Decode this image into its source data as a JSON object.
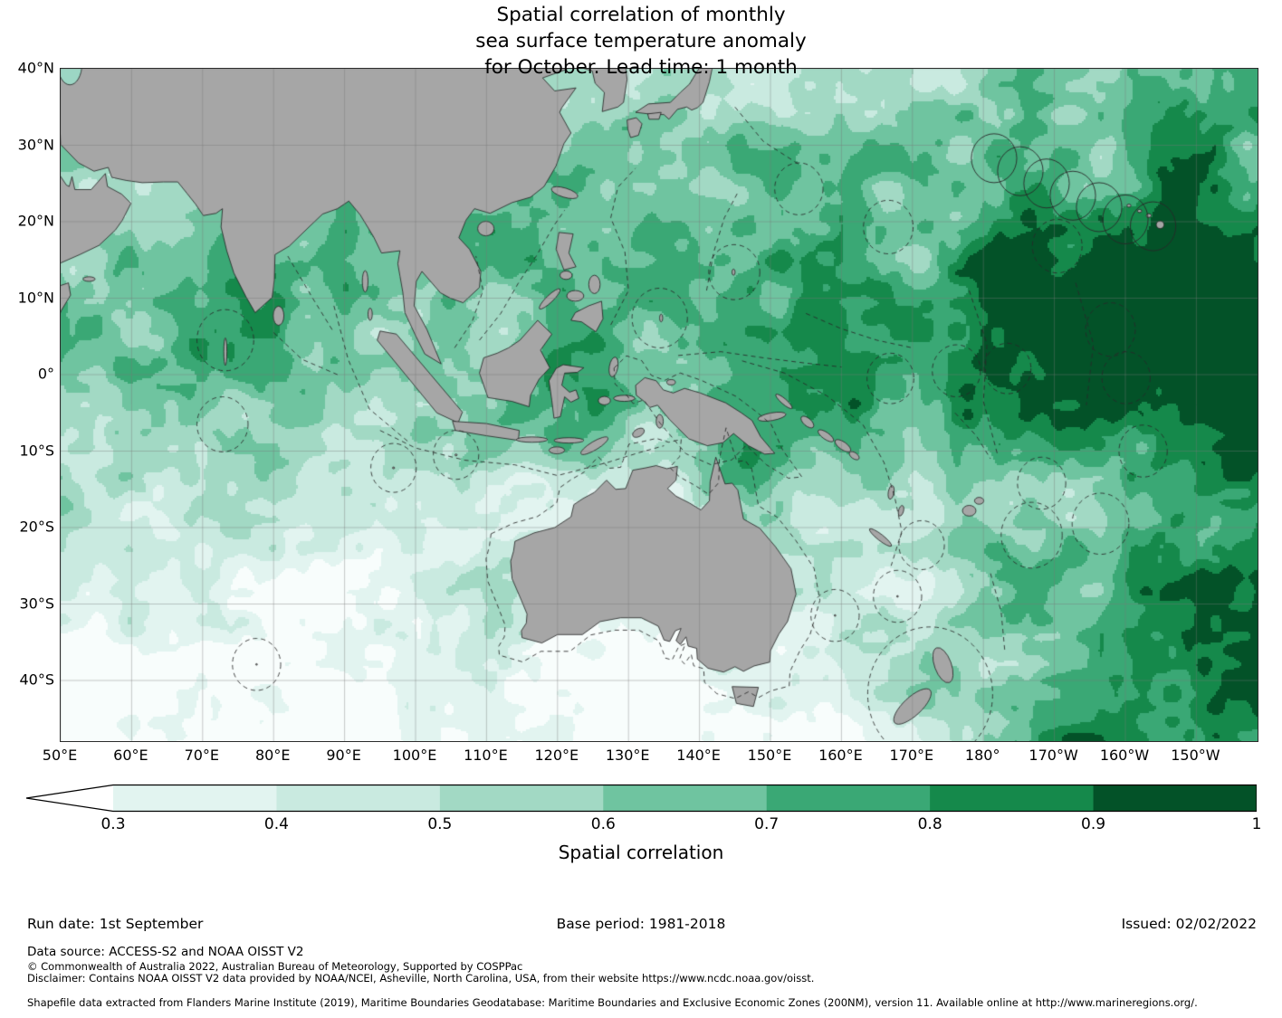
{
  "title": {
    "line1": "Spatial correlation of monthly",
    "line2": "sea surface temperature anomaly",
    "line3": "for October. Lead time: 1 month"
  },
  "axes": {
    "lat_ticks": [
      "40°N",
      "30°N",
      "20°N",
      "10°N",
      "0°",
      "10°S",
      "20°S",
      "30°S",
      "40°S"
    ],
    "lon_ticks": [
      "50°E",
      "60°E",
      "70°E",
      "80°E",
      "90°E",
      "100°E",
      "110°E",
      "120°E",
      "130°E",
      "140°E",
      "150°E",
      "160°E",
      "170°E",
      "180°",
      "170°W",
      "160°W",
      "150°W"
    ]
  },
  "colorbar": {
    "label": "Spatial correlation",
    "tick_labels": [
      "0.3",
      "0.4",
      "0.5",
      "0.6",
      "0.7",
      "0.8",
      "0.9",
      "1"
    ],
    "colors": [
      "#e2f4f0",
      "#c9eae0",
      "#a2d9c4",
      "#6fc4a0",
      "#3aa875",
      "#15894b",
      "#035228"
    ],
    "under_color": "#ffffff"
  },
  "footer": {
    "run_date": "Run date: 1st September",
    "base_period": "Base period: 1981-2018",
    "issued": "Issued: 02/02/2022",
    "data_source": "Data source: ACCESS-S2 and NOAA OISST V2",
    "copyright": "© Commonwealth of Australia 2022, Australian Bureau of Meteorology, Supported by COSPPac",
    "disclaimer": "Disclaimer: Contains NOAA OISST V2 data provided by NOAA/NCEI, Asheville, North Carolina, USA, from their website https://www.ncdc.noaa.gov/oisst.",
    "shapefile": "Shapefile data extracted from Flanders Marine Institute (2019), Maritime Boundaries Geodatabase: Maritime Boundaries and Exclusive Economic Zones (200NM), version 11. Available online at http://www.marineregions.org/."
  },
  "chart_data": {
    "type": "heatmap",
    "title": "Spatial correlation of monthly sea surface temperature anomaly for October. Lead time: 1 month",
    "variable": "Spatial correlation",
    "month": "October",
    "lead_time": "1 month",
    "run_date": "1st September",
    "base_period": "1981-2018",
    "issued": "02/02/2022",
    "levels": [
      0.3,
      0.4,
      0.5,
      0.6,
      0.7,
      0.8,
      0.9,
      1
    ],
    "colors": [
      "#e2f4f0",
      "#c9eae0",
      "#a2d9c4",
      "#6fc4a0",
      "#3aa875",
      "#15894b",
      "#035228"
    ],
    "colorbar_extend": "min",
    "x_tick_labels": [
      "50°E",
      "60°E",
      "70°E",
      "80°E",
      "90°E",
      "100°E",
      "110°E",
      "120°E",
      "130°E",
      "140°E",
      "150°E",
      "160°E",
      "170°E",
      "180°",
      "170°W",
      "160°W",
      "150°W"
    ],
    "y_tick_labels": [
      "40°N",
      "30°N",
      "20°N",
      "10°N",
      "0°",
      "10°S",
      "20°S",
      "30°S",
      "40°S"
    ],
    "grid": true,
    "legend_position": "bottom",
    "region": "Indo-Pacific (Indian Ocean, Maritime Continent, Australia, western-central Pacific)"
  }
}
